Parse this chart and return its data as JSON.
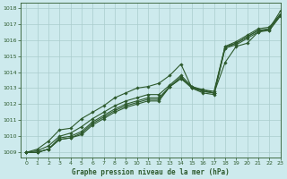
{
  "title": "Graphe pression niveau de la mer (hPa)",
  "xlim": [
    -0.5,
    23
  ],
  "ylim": [
    1008.7,
    1018.3
  ],
  "yticks": [
    1009,
    1010,
    1011,
    1012,
    1013,
    1014,
    1015,
    1016,
    1017,
    1018
  ],
  "xticks": [
    0,
    1,
    2,
    3,
    4,
    5,
    6,
    7,
    8,
    9,
    10,
    11,
    12,
    13,
    14,
    15,
    16,
    17,
    18,
    19,
    20,
    21,
    22,
    23
  ],
  "bg_color": "#cdeaed",
  "grid_color": "#aacccc",
  "line_color": "#2d5a2d",
  "line_width": 0.8,
  "marker": "D",
  "marker_size": 1.8,
  "series": [
    [
      1009.0,
      1009.0,
      1009.2,
      1009.8,
      1009.9,
      1010.1,
      1010.7,
      1011.1,
      1011.5,
      1011.8,
      1012.0,
      1012.2,
      1012.2,
      1013.1,
      1013.6,
      1013.1,
      1012.8,
      1012.7,
      1015.6,
      1015.8,
      1016.2,
      1016.6,
      1016.6,
      1017.5
    ],
    [
      1009.0,
      1009.0,
      1009.2,
      1009.8,
      1009.9,
      1010.2,
      1010.8,
      1011.2,
      1011.6,
      1011.9,
      1012.1,
      1012.3,
      1012.3,
      1013.1,
      1013.6,
      1013.0,
      1012.7,
      1012.6,
      1015.5,
      1015.7,
      1016.1,
      1016.5,
      1016.6,
      1017.5
    ],
    [
      1009.0,
      1009.0,
      1009.2,
      1009.9,
      1010.0,
      1010.3,
      1010.9,
      1011.3,
      1011.7,
      1012.0,
      1012.2,
      1012.4,
      1012.4,
      1013.1,
      1013.7,
      1013.0,
      1012.8,
      1012.7,
      1015.5,
      1015.8,
      1016.2,
      1016.6,
      1016.7,
      1017.6
    ],
    [
      1009.0,
      1009.1,
      1009.4,
      1010.0,
      1010.2,
      1010.6,
      1011.1,
      1011.5,
      1011.9,
      1012.2,
      1012.4,
      1012.6,
      1012.6,
      1013.2,
      1013.8,
      1013.1,
      1012.9,
      1012.8,
      1015.6,
      1015.9,
      1016.3,
      1016.7,
      1016.8,
      1017.6
    ],
    [
      1009.0,
      1009.2,
      1009.7,
      1010.4,
      1010.5,
      1011.1,
      1011.5,
      1011.9,
      1012.4,
      1012.7,
      1013.0,
      1013.1,
      1013.3,
      1013.8,
      1014.5,
      1013.0,
      1012.9,
      1012.7,
      1014.6,
      1015.6,
      1015.8,
      1016.5,
      1016.7,
      1017.8
    ]
  ]
}
